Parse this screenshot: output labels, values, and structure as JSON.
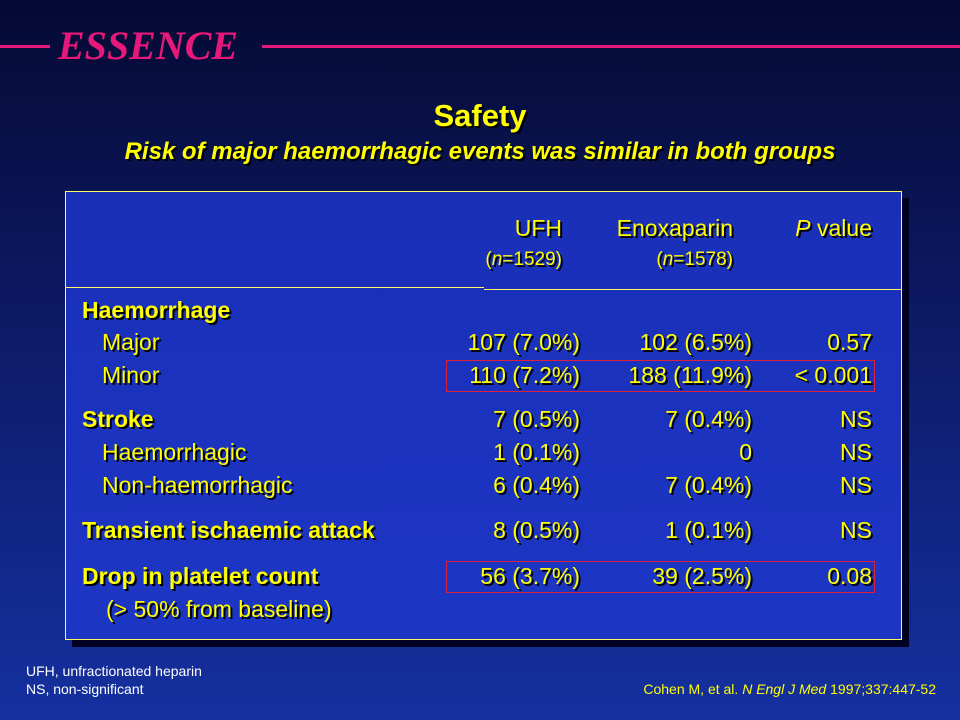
{
  "brand": "ESSENCE",
  "heading": "Safety",
  "subheading": "Risk of major haemorrhagic events was similar in both groups",
  "columns": {
    "ufh": {
      "label": "UFH",
      "n_prefix": "(",
      "n_italic": "n",
      "n_value": "=1529)"
    },
    "enox": {
      "label": "Enoxaparin",
      "n_prefix": "(",
      "n_italic": "n",
      "n_value": "=1578)"
    },
    "p": {
      "italic": "P",
      "label": " value"
    }
  },
  "rows": [
    {
      "label": "Haemorrhage",
      "bold": true
    },
    {
      "label": "Major",
      "ufh": "107 (7.0%)",
      "enox": "102 (6.5%)",
      "p": "0.57"
    },
    {
      "label": "Minor",
      "ufh": "110 (7.2%)",
      "enox": "188 (11.9%)",
      "p": "< 0.001"
    },
    {
      "label": "Stroke",
      "bold": true,
      "ufh": "7 (0.5%)",
      "enox": "7 (0.4%)",
      "p": "NS"
    },
    {
      "label": "Haemorrhagic",
      "ufh": "1 (0.1%)",
      "enox": "0",
      "p": "NS"
    },
    {
      "label": "Non-haemorrhagic",
      "ufh": "6 (0.4%)",
      "enox": "7 (0.4%)",
      "p": "NS"
    },
    {
      "label": "Transient ischaemic attack",
      "bold": true,
      "ufh": "8 (0.5%)",
      "enox": "1 (0.1%)",
      "p": "NS"
    },
    {
      "label": "Drop in platelet count",
      "bold": true,
      "ufh": "56 (3.7%)",
      "enox": "39 (2.5%)",
      "p": "0.08"
    },
    {
      "label": "(> 50% from baseline)"
    }
  ],
  "footnotes": [
    "UFH, unfractionated heparin",
    "NS, non-significant"
  ],
  "citation": {
    "authors": "Cohen M, et al. ",
    "journal": "N Engl J Med",
    "ref": " 1997;337:447-52"
  },
  "colors": {
    "accent": "#e6197a",
    "text": "#ffff00",
    "highlight": "#e0203a",
    "panel": "#1c36c4"
  }
}
